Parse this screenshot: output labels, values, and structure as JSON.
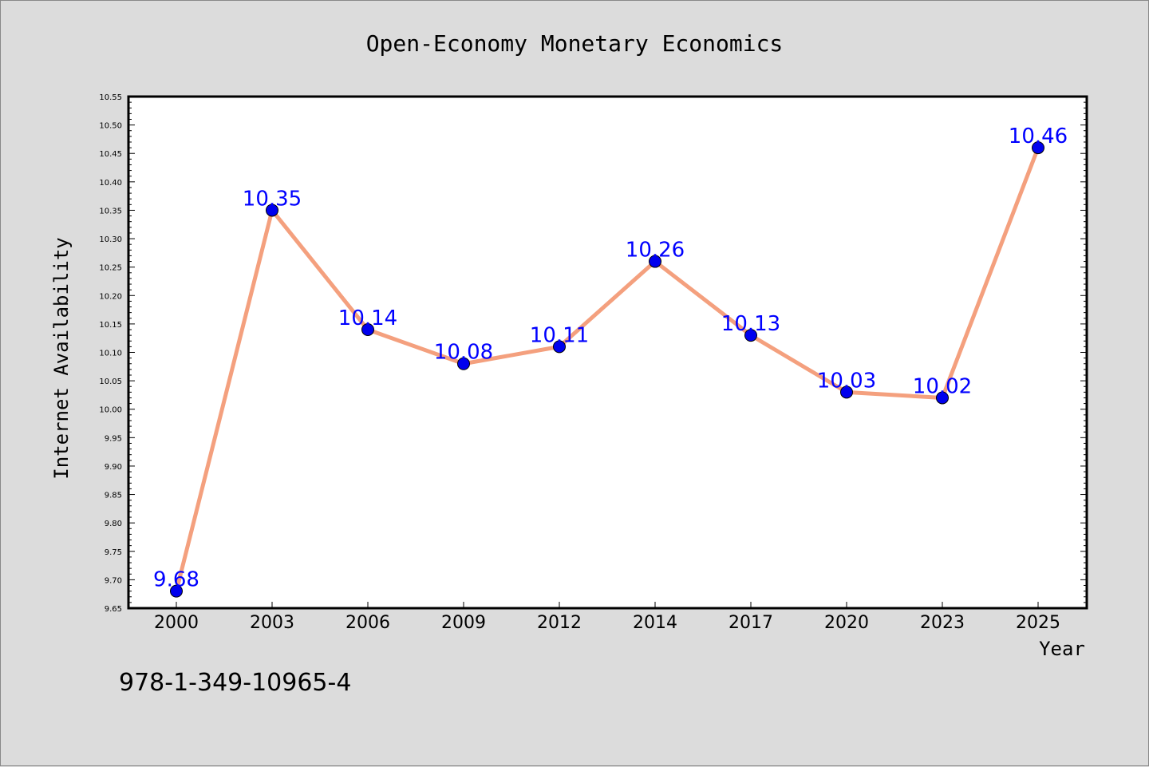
{
  "chart_data": {
    "type": "line",
    "title": "Open-Economy Monetary Economics",
    "xlabel": "Year",
    "ylabel": "Internet Availability",
    "categories": [
      "2000",
      "2003",
      "2006",
      "2009",
      "2012",
      "2014",
      "2017",
      "2020",
      "2023",
      "2025"
    ],
    "series": [
      {
        "values": [
          9.68,
          10.35,
          10.14,
          10.08,
          10.11,
          10.26,
          10.13,
          10.03,
          10.02,
          10.46
        ]
      }
    ],
    "data_labels": [
      "9.68",
      "10.35",
      "10.14",
      "10.08",
      "10.11",
      "10.26",
      "10.13",
      "10.03",
      "10.02",
      "10.46"
    ],
    "y_ticks": [
      "9.65",
      "9.70",
      "9.75",
      "9.80",
      "9.85",
      "9.90",
      "9.95",
      "10.00",
      "10.05",
      "10.10",
      "10.15",
      "10.20",
      "10.25",
      "10.30",
      "10.35",
      "10.40",
      "10.45",
      "10.50",
      "10.55"
    ],
    "ylim": [
      9.65,
      10.55
    ],
    "grid": false,
    "legend": "none",
    "colors": {
      "line": "#f4a07e",
      "marker": "#0000ee",
      "label": "#0000ff",
      "background": "#dcdcdc",
      "plot_bg": "#ffffff"
    }
  },
  "footer": {
    "isbn": "978-1-349-10965-4"
  }
}
